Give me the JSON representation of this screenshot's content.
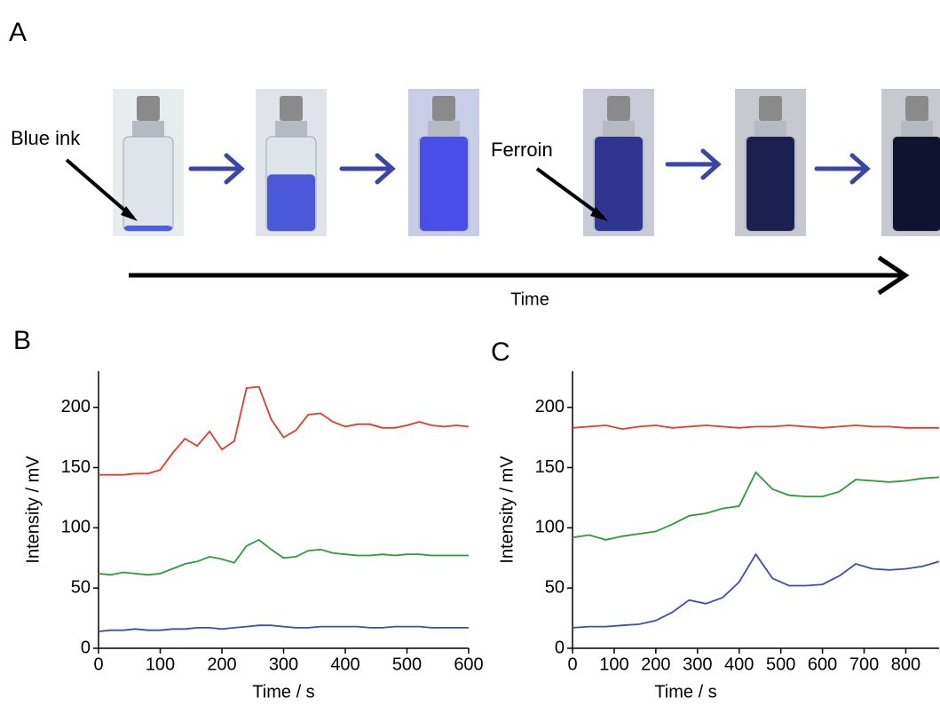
{
  "photo_panel": {
    "label": "A",
    "annotations": [
      "Blue ink",
      "Ferroin"
    ],
    "axis_label": "Time"
  },
  "chart_data": [
    {
      "type": "line",
      "label": "B",
      "x_label": "Time / s",
      "y_label": "Intensity / mV",
      "x": [
        0,
        20,
        40,
        60,
        80,
        100,
        120,
        140,
        160,
        180,
        200,
        220,
        240,
        260,
        280,
        300,
        320,
        340,
        360,
        380,
        400,
        420,
        440,
        460,
        480,
        500,
        520,
        540,
        560,
        580,
        600
      ],
      "series": [
        {
          "color": "#e8392c",
          "values": [
            144,
            144,
            144,
            145,
            145,
            148,
            162,
            174,
            168,
            180,
            165,
            172,
            216,
            217,
            190,
            175,
            181,
            194,
            195,
            188,
            184,
            186,
            186,
            183,
            183,
            185,
            188,
            185,
            184,
            185,
            184
          ]
        },
        {
          "color": "#2e9a3c",
          "values": [
            62,
            61,
            63,
            62,
            61,
            62,
            66,
            70,
            72,
            76,
            74,
            71,
            85,
            90,
            82,
            75,
            76,
            81,
            82,
            79,
            78,
            77,
            77,
            78,
            77,
            78,
            78,
            77,
            77,
            77,
            77
          ]
        },
        {
          "color": "#3a4fb0",
          "values": [
            14,
            15,
            15,
            16,
            15,
            15,
            16,
            16,
            17,
            17,
            16,
            17,
            18,
            19,
            19,
            18,
            17,
            17,
            18,
            18,
            18,
            18,
            17,
            17,
            18,
            18,
            18,
            17,
            17,
            17,
            17
          ]
        }
      ],
      "xlim": [
        0,
        600
      ],
      "xticks": [
        0,
        100,
        200,
        300,
        400,
        500,
        600
      ],
      "ylim": [
        0,
        230
      ],
      "yticks": [
        0,
        50,
        100,
        150,
        200
      ]
    },
    {
      "type": "line",
      "label": "C",
      "x_label": "Time / s",
      "y_label": "Intensity / mV",
      "x": [
        0,
        40,
        80,
        120,
        160,
        200,
        240,
        280,
        320,
        360,
        400,
        440,
        480,
        520,
        560,
        600,
        640,
        680,
        720,
        760,
        800,
        840,
        880
      ],
      "series": [
        {
          "color": "#e8392c",
          "values": [
            183,
            184,
            185,
            182,
            184,
            185,
            183,
            184,
            185,
            184,
            183,
            184,
            184,
            185,
            184,
            183,
            184,
            185,
            184,
            184,
            183,
            183,
            183
          ]
        },
        {
          "color": "#2e9a3c",
          "values": [
            92,
            94,
            90,
            93,
            95,
            97,
            103,
            110,
            112,
            116,
            118,
            146,
            132,
            127,
            126,
            126,
            130,
            140,
            139,
            138,
            139,
            141,
            142
          ]
        },
        {
          "color": "#3a4fb0",
          "values": [
            17,
            18,
            18,
            19,
            20,
            23,
            30,
            40,
            37,
            42,
            55,
            78,
            58,
            52,
            52,
            53,
            60,
            70,
            66,
            65,
            66,
            68,
            72
          ]
        }
      ],
      "xlim": [
        0,
        880
      ],
      "xticks": [
        0,
        100,
        200,
        300,
        400,
        500,
        600,
        700,
        800
      ],
      "ylim": [
        0,
        230
      ],
      "yticks": [
        0,
        50,
        100,
        150,
        200
      ]
    }
  ]
}
